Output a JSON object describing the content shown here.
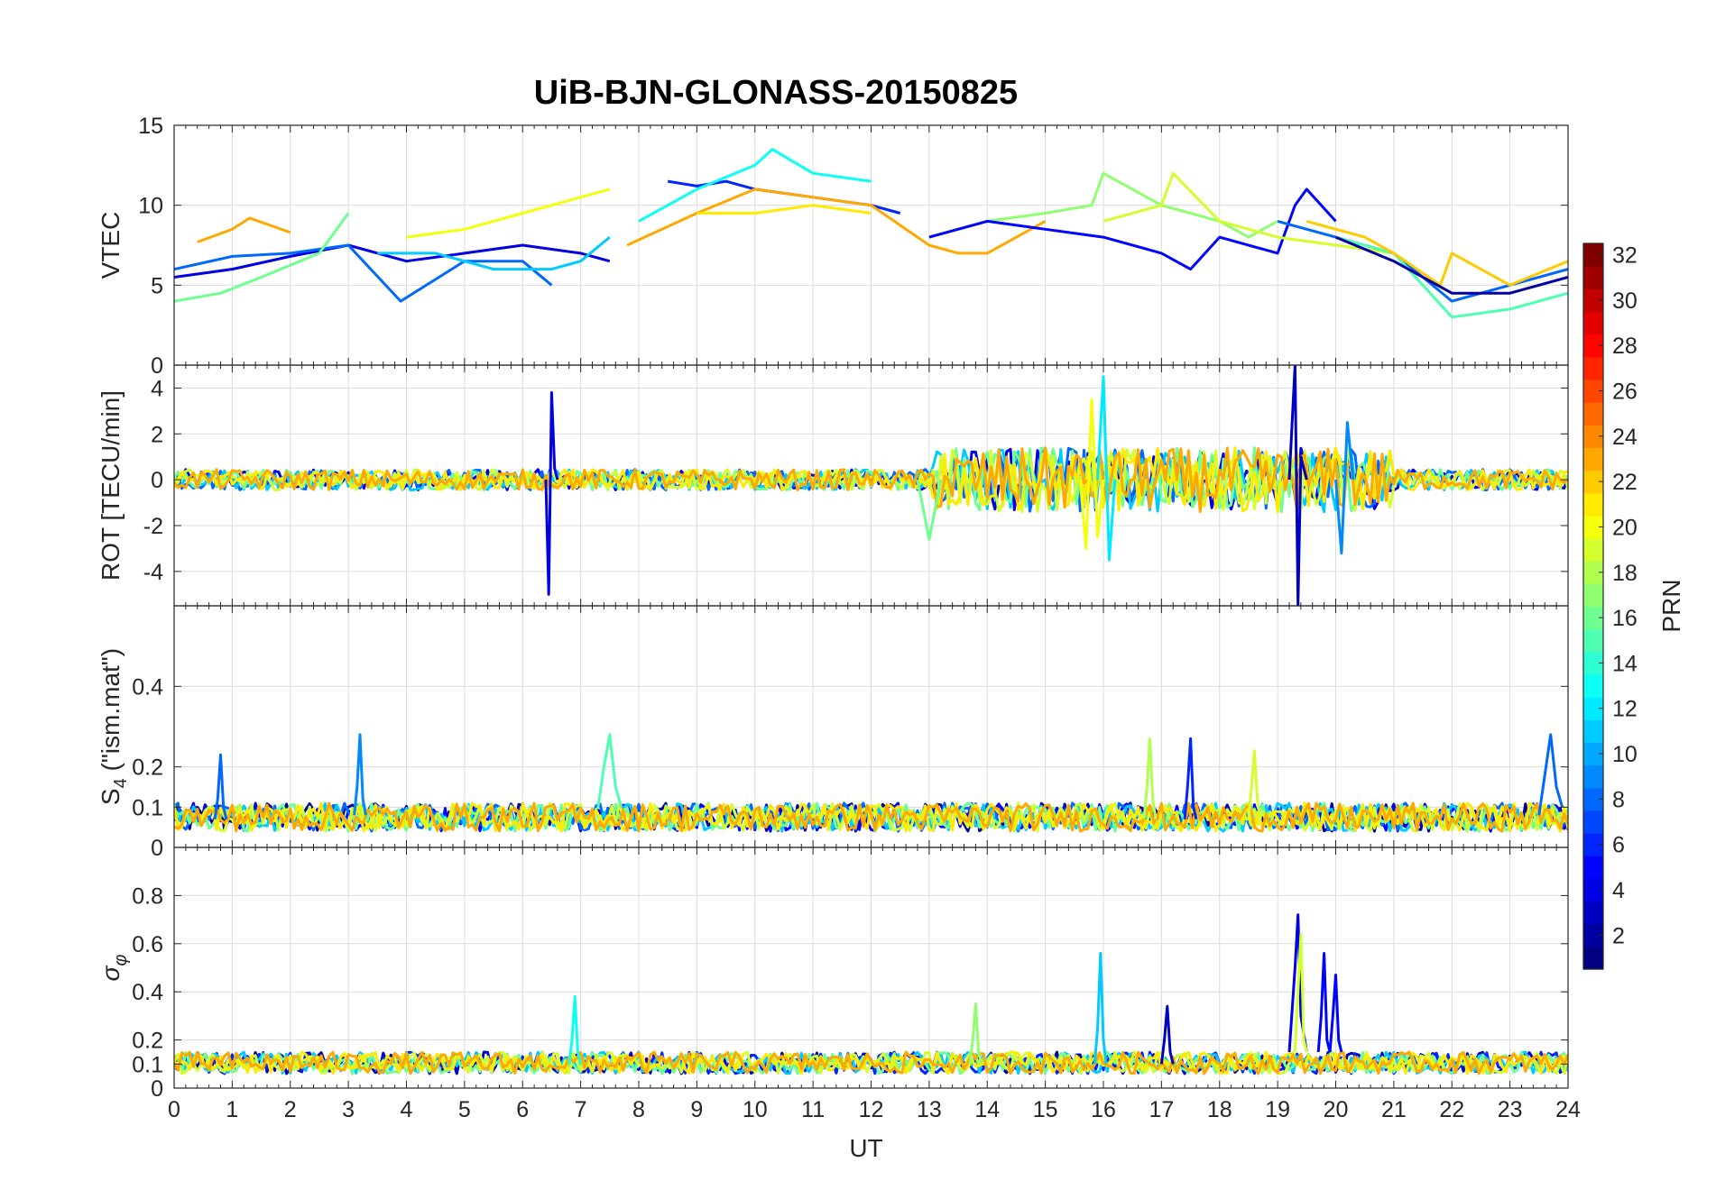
{
  "chart_data": {
    "type": "line",
    "title": "UiB-BJN-GLONASS-20150825",
    "xlabel": "UT",
    "xlim": [
      0,
      24
    ],
    "x_ticks": [
      "0",
      "1",
      "2",
      "3",
      "4",
      "5",
      "6",
      "7",
      "8",
      "9",
      "10",
      "11",
      "12",
      "13",
      "14",
      "15",
      "16",
      "17",
      "18",
      "19",
      "20",
      "21",
      "22",
      "23",
      "24"
    ],
    "panels": [
      {
        "id": "vtec",
        "ylabel": "VTEC",
        "ylim": [
          0,
          15
        ],
        "y_ticks": [
          "0",
          "5",
          "10",
          "15"
        ],
        "y_tick_values": [
          0,
          5,
          10,
          15
        ],
        "series": [
          {
            "prn": 4,
            "x": [
              0,
              1,
              2,
              3,
              4,
              5,
              6,
              7,
              7.5
            ],
            "values": [
              5.5,
              6,
              6.8,
              7.5,
              6.5,
              7,
              7.5,
              7,
              6.5
            ]
          },
          {
            "prn": 8,
            "x": [
              0,
              1,
              2,
              3,
              3.9,
              5,
              6,
              6.5
            ],
            "values": [
              6,
              6.8,
              7,
              7.5,
              4,
              6.5,
              6.5,
              5
            ]
          },
          {
            "prn": 11,
            "x": [
              3.5,
              4.5,
              5.5,
              6.5,
              7,
              7.5
            ],
            "values": [
              7,
              7,
              6,
              6,
              6.5,
              8
            ]
          },
          {
            "prn": 20,
            "x": [
              4,
              5,
              6,
              7,
              7.5
            ],
            "values": [
              8,
              8.5,
              9.5,
              10.5,
              11
            ]
          },
          {
            "prn": 16,
            "x": [
              0,
              0.8,
              1.5,
              2.5,
              3
            ],
            "values": [
              4,
              4.5,
              5.5,
              7,
              9.5
            ]
          },
          {
            "prn": 23,
            "x": [
              0.4,
              1,
              1.3,
              2
            ],
            "values": [
              7.7,
              8.5,
              9.2,
              8.3
            ]
          },
          {
            "prn": 6,
            "x": [
              8.5,
              9,
              9.5,
              10,
              11,
              12,
              12.5
            ],
            "values": [
              11.5,
              11.2,
              11.5,
              11,
              10.5,
              10,
              9.5
            ]
          },
          {
            "prn": 13,
            "x": [
              8,
              9,
              10,
              10.3,
              11,
              12
            ],
            "values": [
              9,
              11,
              12.5,
              13.5,
              12,
              11.5
            ]
          },
          {
            "prn": 23,
            "x": [
              7.8,
              9,
              10,
              11,
              12,
              13,
              13.5,
              14,
              15
            ],
            "values": [
              7.5,
              9.5,
              11,
              10.5,
              10,
              7.5,
              7,
              7,
              9
            ]
          },
          {
            "prn": 21,
            "x": [
              9,
              10,
              11,
              12
            ],
            "values": [
              9.5,
              9.5,
              10,
              9.5
            ]
          },
          {
            "prn": 17,
            "x": [
              13,
              14,
              15,
              15.8,
              16,
              17,
              18,
              18.5,
              19
            ],
            "values": [
              8,
              9,
              9.5,
              10,
              12,
              10,
              9,
              8,
              9
            ]
          },
          {
            "prn": 5,
            "x": [
              13,
              14,
              15,
              16,
              17,
              17.5,
              18,
              19,
              19.3,
              19.5,
              20
            ],
            "values": [
              8,
              9,
              8.5,
              8,
              7,
              6,
              8,
              7,
              10,
              11,
              9
            ]
          },
          {
            "prn": 19,
            "x": [
              16,
              17,
              17.2,
              18,
              19,
              20,
              21
            ],
            "values": [
              9,
              10,
              12,
              9,
              8,
              7.5,
              7
            ]
          },
          {
            "prn": 8,
            "x": [
              19,
              20,
              21,
              22,
              23,
              24
            ],
            "values": [
              9,
              8,
              7,
              4,
              5,
              6
            ]
          },
          {
            "prn": 15,
            "x": [
              20,
              21,
              22,
              23,
              24
            ],
            "values": [
              8,
              7,
              3,
              3.5,
              4.5
            ]
          },
          {
            "prn": 22,
            "x": [
              19.5,
              20.5,
              21,
              21.8,
              22,
              23,
              24
            ],
            "values": [
              9,
              8,
              7,
              5,
              7,
              5,
              6.5
            ]
          },
          {
            "prn": 2,
            "x": [
              20,
              21,
              22,
              23,
              24
            ],
            "values": [
              8,
              6.5,
              4.5,
              4.5,
              5.5
            ]
          }
        ]
      },
      {
        "id": "rot",
        "ylabel": "ROT [TECU/min]",
        "ylim": [
          -5.5,
          5
        ],
        "y_ticks": [
          "-4",
          "-2",
          "0",
          "2",
          "4"
        ],
        "y_tick_values": [
          -4,
          -2,
          0,
          2,
          4
        ],
        "series": [
          {
            "prn": 4,
            "x": [
              6.4,
              6.45,
              6.5,
              6.55,
              6.6
            ],
            "values": [
              0,
              -5,
              3.8,
              0.5,
              0
            ]
          },
          {
            "prn": 3,
            "x": [
              19.2,
              19.3,
              19.35,
              19.4,
              19.5
            ],
            "values": [
              0,
              5,
              -5.5,
              1,
              0
            ]
          },
          {
            "prn": 20,
            "x": [
              15.6,
              15.7,
              15.8,
              15.9,
              16
            ],
            "values": [
              0,
              -3,
              3.5,
              -2.5,
              0
            ]
          },
          {
            "prn": 12,
            "x": [
              15.9,
              16,
              16.1,
              16.2
            ],
            "values": [
              0,
              4.5,
              -3.5,
              0
            ]
          },
          {
            "prn": 16,
            "x": [
              12.8,
              13,
              13.2
            ],
            "values": [
              0,
              -2.6,
              0
            ]
          },
          {
            "prn": 9,
            "x": [
              20,
              20.1,
              20.2,
              20.3
            ],
            "values": [
              0,
              -3.2,
              2.5,
              0
            ]
          }
        ],
        "baseline_prns": [
          4,
          8,
          11,
          16,
          19,
          21,
          23
        ]
      },
      {
        "id": "s4",
        "ylabel": "S4 (\"ism.mat\")",
        "ylabel_main": "S",
        "ylabel_sub": "4",
        "ylabel_rest": " (\"ism.mat\")",
        "ylim": [
          0,
          0.6
        ],
        "y_ticks": [
          "0",
          "0.1",
          "0.2",
          "0.4"
        ],
        "y_tick_values": [
          0,
          0.1,
          0.2,
          0.4
        ],
        "series": [
          {
            "prn": 8,
            "x": [
              0.7,
              0.75,
              0.8,
              0.85,
              0.9
            ],
            "values": [
              0.07,
              0.12,
              0.23,
              0.1,
              0.07
            ]
          },
          {
            "prn": 9,
            "x": [
              3.1,
              3.15,
              3.2,
              3.25,
              3.3
            ],
            "values": [
              0.08,
              0.15,
              0.28,
              0.12,
              0.08
            ]
          },
          {
            "prn": 15,
            "x": [
              7.3,
              7.4,
              7.5,
              7.6,
              7.7
            ],
            "values": [
              0.1,
              0.2,
              0.28,
              0.15,
              0.1
            ]
          },
          {
            "prn": 6,
            "x": [
              17.4,
              17.45,
              17.5,
              17.55,
              17.6
            ],
            "values": [
              0.07,
              0.15,
              0.27,
              0.1,
              0.07
            ]
          },
          {
            "prn": 8,
            "x": [
              23.5,
              23.6,
              23.7,
              23.8,
              23.9
            ],
            "values": [
              0.08,
              0.18,
              0.28,
              0.15,
              0.1
            ]
          },
          {
            "prn": 18,
            "x": [
              16.7,
              16.75,
              16.8,
              16.85,
              16.9
            ],
            "values": [
              0.07,
              0.15,
              0.27,
              0.12,
              0.07
            ]
          },
          {
            "prn": 19,
            "x": [
              18.5,
              18.55,
              18.6,
              18.65,
              18.7
            ],
            "values": [
              0.07,
              0.15,
              0.24,
              0.12,
              0.07
            ]
          }
        ],
        "baseline_prns": [
          2,
          5,
          8,
          11,
          16,
          19,
          21,
          23
        ]
      },
      {
        "id": "sigphi",
        "ylabel": "σφ",
        "ylabel_main": "σ",
        "ylabel_sub": "φ",
        "ylim": [
          0,
          1
        ],
        "y_ticks": [
          "0",
          "0.1",
          "0.2",
          "0.4",
          "0.6",
          "0.8"
        ],
        "y_tick_values": [
          0,
          0.1,
          0.2,
          0.4,
          0.6,
          0.8
        ],
        "series": [
          {
            "prn": 4,
            "x": [
              19.2,
              19.3,
              19.35,
              19.4,
              19.5
            ],
            "values": [
              0.15,
              0.5,
              0.72,
              0.3,
              0.15
            ]
          },
          {
            "prn": 19,
            "x": [
              19.3,
              19.35,
              19.4,
              19.45,
              19.5
            ],
            "values": [
              0.15,
              0.4,
              0.64,
              0.2,
              0.15
            ]
          },
          {
            "prn": 5,
            "x": [
              19.7,
              19.75,
              19.8,
              19.85,
              19.9
            ],
            "values": [
              0.15,
              0.3,
              0.56,
              0.2,
              0.15
            ]
          },
          {
            "prn": 5,
            "x": [
              19.9,
              19.95,
              20,
              20.05,
              20.1
            ],
            "values": [
              0.15,
              0.3,
              0.47,
              0.2,
              0.15
            ]
          },
          {
            "prn": 11,
            "x": [
              15.85,
              15.9,
              15.95,
              16,
              16.05
            ],
            "values": [
              0.1,
              0.25,
              0.56,
              0.2,
              0.1
            ]
          },
          {
            "prn": 13,
            "x": [
              6.8,
              6.85,
              6.9,
              6.95,
              7
            ],
            "values": [
              0.1,
              0.2,
              0.38,
              0.15,
              0.1
            ]
          },
          {
            "prn": 17,
            "x": [
              13.7,
              13.75,
              13.8,
              13.85,
              13.9
            ],
            "values": [
              0.1,
              0.2,
              0.35,
              0.15,
              0.1
            ]
          },
          {
            "prn": 3,
            "x": [
              17,
              17.05,
              17.1,
              17.15,
              17.2
            ],
            "values": [
              0.1,
              0.2,
              0.34,
              0.15,
              0.1
            ]
          }
        ],
        "baseline_prns": [
          3,
          6,
          11,
          16,
          19,
          21,
          23
        ]
      }
    ],
    "colorbar": {
      "label": "PRN",
      "range": [
        1,
        32
      ],
      "ticks": [
        "2",
        "4",
        "6",
        "8",
        "10",
        "12",
        "14",
        "16",
        "18",
        "20",
        "22",
        "24",
        "26",
        "28",
        "30",
        "32"
      ],
      "tick_values": [
        2,
        4,
        6,
        8,
        10,
        12,
        14,
        16,
        18,
        20,
        22,
        24,
        26,
        28,
        30,
        32
      ],
      "colormap": "jet"
    }
  }
}
